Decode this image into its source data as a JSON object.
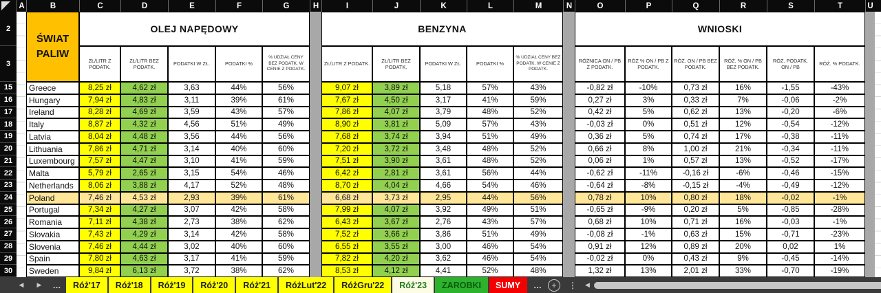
{
  "sheet": {
    "columns": [
      "A",
      "B",
      "C",
      "D",
      "E",
      "F",
      "G",
      "H",
      "I",
      "J",
      "K",
      "L",
      "M",
      "N",
      "O",
      "P",
      "Q",
      "R",
      "S",
      "T",
      "U"
    ],
    "row_numbers": [
      "2",
      "3",
      "15",
      "16",
      "17",
      "18",
      "19",
      "20",
      "21",
      "22",
      "23",
      "24",
      "25",
      "26",
      "27",
      "28",
      "29",
      "30"
    ],
    "title_cell": "ŚWIAT PALIW",
    "sections": {
      "diesel": {
        "title": "OLEJ NAPĘDOWY",
        "subheaders": [
          "ZŁ/LITR Z PODATK.",
          "ZŁ/LITR BEZ PODATK.",
          "PODATKI W ZŁ.",
          "PODATKI %",
          "% UDZIAŁ CENY BEZ PODATK. W CENIE Z PODATK."
        ]
      },
      "petrol": {
        "title": "BENZYNA",
        "subheaders": [
          "ZŁ/LITR Z PODATK.",
          "ZŁ/LITR BEZ PODATK.",
          "PODATKI W ZŁ.",
          "PODATKI %",
          "% UDZIAŁ CENY BEZ PODATK. W CENIE Z PODATK."
        ]
      },
      "conclusions": {
        "title": "WNIOSKI",
        "subheaders": [
          "RÓŻNICA ON / PB Z PODATK.",
          "RÓŻ % ON / PB Z PODATK.",
          "RÓŻ. ON / PB BEZ PODATK.",
          "RÓŻ. % ON / PB BEZ PODATK.",
          "RÓŻ. PODATK. ON / PB",
          "RÓŻ. % PODATK."
        ]
      }
    },
    "rows": [
      {
        "num": "15",
        "country": "Greece",
        "highlighted": false,
        "diesel": [
          "8,25 zł",
          "4,62 zł",
          "3,63",
          "44%",
          "56%"
        ],
        "petrol": [
          "9,07 zł",
          "3,89 zł",
          "5,18",
          "57%",
          "43%"
        ],
        "conclusions": [
          "-0,82 zł",
          "-10%",
          "0,73 zł",
          "16%",
          "-1,55",
          "-43%"
        ]
      },
      {
        "num": "16",
        "country": "Hungary",
        "highlighted": false,
        "diesel": [
          "7,94 zł",
          "4,83 zł",
          "3,11",
          "39%",
          "61%"
        ],
        "petrol": [
          "7,67 zł",
          "4,50 zł",
          "3,17",
          "41%",
          "59%"
        ],
        "conclusions": [
          "0,27 zł",
          "3%",
          "0,33 zł",
          "7%",
          "-0,06",
          "-2%"
        ]
      },
      {
        "num": "17",
        "country": "Ireland",
        "highlighted": false,
        "diesel": [
          "8,28 zł",
          "4,69 zł",
          "3,59",
          "43%",
          "57%"
        ],
        "petrol": [
          "7,86 zł",
          "4,07 zł",
          "3,79",
          "48%",
          "52%"
        ],
        "conclusions": [
          "0,42 zł",
          "5%",
          "0,62 zł",
          "13%",
          "-0,20",
          "-6%"
        ]
      },
      {
        "num": "18",
        "country": "Italy",
        "highlighted": false,
        "diesel": [
          "8,87 zł",
          "4,32 zł",
          "4,56",
          "51%",
          "49%"
        ],
        "petrol": [
          "8,90 zł",
          "3,81 zł",
          "5,09",
          "57%",
          "43%"
        ],
        "conclusions": [
          "-0,03 zł",
          "0%",
          "0,51 zł",
          "12%",
          "-0,54",
          "-12%"
        ]
      },
      {
        "num": "19",
        "country": "Latvia",
        "highlighted": false,
        "diesel": [
          "8,04 zł",
          "4,48 zł",
          "3,56",
          "44%",
          "56%"
        ],
        "petrol": [
          "7,68 zł",
          "3,74 zł",
          "3,94",
          "51%",
          "49%"
        ],
        "conclusions": [
          "0,36 zł",
          "5%",
          "0,74 zł",
          "17%",
          "-0,38",
          "-11%"
        ]
      },
      {
        "num": "20",
        "country": "Lithuania",
        "highlighted": false,
        "diesel": [
          "7,86 zł",
          "4,71 zł",
          "3,14",
          "40%",
          "60%"
        ],
        "petrol": [
          "7,20 zł",
          "3,72 zł",
          "3,48",
          "48%",
          "52%"
        ],
        "conclusions": [
          "0,66 zł",
          "8%",
          "1,00 zł",
          "21%",
          "-0,34",
          "-11%"
        ]
      },
      {
        "num": "21",
        "country": "Luxembourg",
        "highlighted": false,
        "diesel": [
          "7,57 zł",
          "4,47 zł",
          "3,10",
          "41%",
          "59%"
        ],
        "petrol": [
          "7,51 zł",
          "3,90 zł",
          "3,61",
          "48%",
          "52%"
        ],
        "conclusions": [
          "0,06 zł",
          "1%",
          "0,57 zł",
          "13%",
          "-0,52",
          "-17%"
        ]
      },
      {
        "num": "22",
        "country": "Malta",
        "highlighted": false,
        "diesel": [
          "5,79 zł",
          "2,65 zł",
          "3,15",
          "54%",
          "46%"
        ],
        "petrol": [
          "6,42 zł",
          "2,81 zł",
          "3,61",
          "56%",
          "44%"
        ],
        "conclusions": [
          "-0,62 zł",
          "-11%",
          "-0,16 zł",
          "-6%",
          "-0,46",
          "-15%"
        ]
      },
      {
        "num": "23",
        "country": "Netherlands",
        "highlighted": false,
        "diesel": [
          "8,06 zł",
          "3,88 zł",
          "4,17",
          "52%",
          "48%"
        ],
        "petrol": [
          "8,70 zł",
          "4,04 zł",
          "4,66",
          "54%",
          "46%"
        ],
        "conclusions": [
          "-0,64 zł",
          "-8%",
          "-0,15 zł",
          "-4%",
          "-0,49",
          "-12%"
        ]
      },
      {
        "num": "24",
        "country": "Poland",
        "highlighted": true,
        "diesel": [
          "7,46 zł",
          "4,53 zł",
          "2,93",
          "39%",
          "61%"
        ],
        "petrol": [
          "6,68 zł",
          "3,73 zł",
          "2,95",
          "44%",
          "56%"
        ],
        "conclusions": [
          "0,78 zł",
          "10%",
          "0,80 zł",
          "18%",
          "-0,02",
          "-1%"
        ]
      },
      {
        "num": "25",
        "country": "Portugal",
        "highlighted": false,
        "diesel": [
          "7,34 zł",
          "4,27 zł",
          "3,07",
          "42%",
          "58%"
        ],
        "petrol": [
          "7,99 zł",
          "4,07 zł",
          "3,92",
          "49%",
          "51%"
        ],
        "conclusions": [
          "-0,65 zł",
          "-9%",
          "0,20 zł",
          "5%",
          "-0,85",
          "-28%"
        ]
      },
      {
        "num": "26",
        "country": "Romania",
        "highlighted": false,
        "diesel": [
          "7,11 zł",
          "4,38 zł",
          "2,73",
          "38%",
          "62%"
        ],
        "petrol": [
          "6,43 zł",
          "3,67 zł",
          "2,76",
          "43%",
          "57%"
        ],
        "conclusions": [
          "0,68 zł",
          "10%",
          "0,71 zł",
          "16%",
          "-0,03",
          "-1%"
        ]
      },
      {
        "num": "27",
        "country": "Slovakia",
        "highlighted": false,
        "diesel": [
          "7,43 zł",
          "4,29 zł",
          "3,14",
          "42%",
          "58%"
        ],
        "petrol": [
          "7,52 zł",
          "3,66 zł",
          "3,86",
          "51%",
          "49%"
        ],
        "conclusions": [
          "-0,08 zł",
          "-1%",
          "0,63 zł",
          "15%",
          "-0,71",
          "-23%"
        ]
      },
      {
        "num": "28",
        "country": "Slovenia",
        "highlighted": false,
        "diesel": [
          "7,46 zł",
          "4,44 zł",
          "3,02",
          "40%",
          "60%"
        ],
        "petrol": [
          "6,55 zł",
          "3,55 zł",
          "3,00",
          "46%",
          "54%"
        ],
        "conclusions": [
          "0,91 zł",
          "12%",
          "0,89 zł",
          "20%",
          "0,02",
          "1%"
        ]
      },
      {
        "num": "29",
        "country": "Spain",
        "highlighted": false,
        "diesel": [
          "7,80 zł",
          "4,63 zł",
          "3,17",
          "41%",
          "59%"
        ],
        "petrol": [
          "7,82 zł",
          "4,20 zł",
          "3,62",
          "46%",
          "54%"
        ],
        "conclusions": [
          "-0,02 zł",
          "0%",
          "0,43 zł",
          "9%",
          "-0,45",
          "-14%"
        ]
      },
      {
        "num": "30",
        "country": "Sweden",
        "highlighted": false,
        "diesel": [
          "9,84 zł",
          "6,13 zł",
          "3,72",
          "38%",
          "62%"
        ],
        "petrol": [
          "8,53 zł",
          "4,12 zł",
          "4,41",
          "52%",
          "48%"
        ],
        "conclusions": [
          "1,32 zł",
          "13%",
          "2,01 zł",
          "33%",
          "-0,70",
          "-19%"
        ]
      }
    ]
  },
  "colors": {
    "yellow_cell": "#FFFF00",
    "green_cell": "#92D050",
    "highlight_row": "#FFE699",
    "title_orange": "#FFC000",
    "spacer_gray": "#A8A8A8",
    "tab_yellow": "#FFFF00",
    "tab_active_bg": "#FCFBE4",
    "tab_active_text": "#1F7A1F",
    "tab_green_bg": "#2DB22D",
    "tab_red_bg": "#F40000"
  },
  "tabbar": {
    "nav_prev": "◀",
    "nav_next": "▶",
    "overflow_dots": "…",
    "tabs": [
      {
        "label": "Róż'17",
        "style": "yellowtab"
      },
      {
        "label": "Róż'18",
        "style": "yellowtab"
      },
      {
        "label": "Róż'19",
        "style": "yellowtab"
      },
      {
        "label": "Róż'20",
        "style": "yellowtab"
      },
      {
        "label": "Róż'21",
        "style": "yellowtab"
      },
      {
        "label": "RóżLut'22",
        "style": "yellowtab"
      },
      {
        "label": "RóżGru'22",
        "style": "yellowtab"
      },
      {
        "label": "Róż'23",
        "style": "activetab"
      },
      {
        "label": "ZAROBKI",
        "style": "greentab"
      },
      {
        "label": "SUMY",
        "style": "redtab"
      }
    ],
    "more_dots": "…",
    "add_label": "+",
    "splitter_dots": "⋮",
    "scroll_left": "◀"
  }
}
